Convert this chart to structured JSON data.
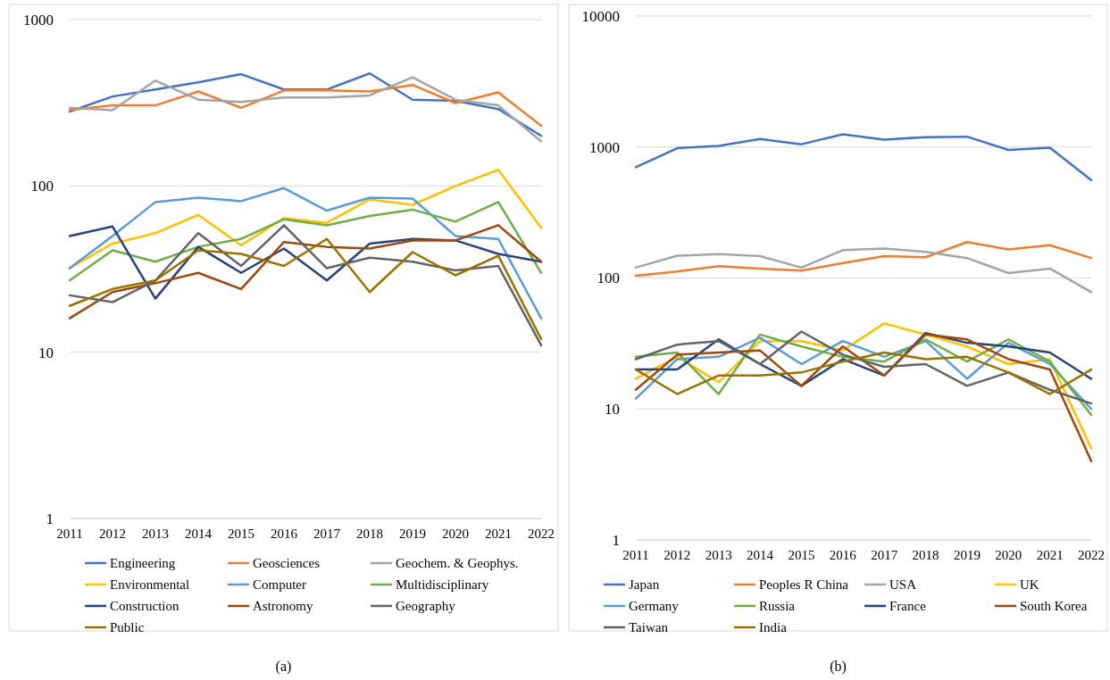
{
  "chart_data": [
    {
      "type": "line",
      "title": "(a)",
      "log": "y",
      "grid": "y",
      "legend": "bottom",
      "x": [
        2011,
        2012,
        2013,
        2014,
        2015,
        2016,
        2017,
        2018,
        2019,
        2020,
        2021,
        2022
      ],
      "xlim": [
        2011,
        2022
      ],
      "xticks": [
        2011,
        2012,
        2013,
        2014,
        2015,
        2016,
        2017,
        2018,
        2019,
        2020,
        2021,
        2022
      ],
      "ylim": [
        1,
        1000
      ],
      "yticks": [
        1,
        10,
        100,
        1000
      ],
      "series": [
        {
          "name": "Engineering",
          "color": "#4472c4",
          "values": [
            280,
            345,
            380,
            420,
            470,
            380,
            380,
            475,
            330,
            325,
            290,
            200
          ]
        },
        {
          "name": "Geosciences",
          "color": "#ed7d31",
          "values": [
            285,
            305,
            305,
            370,
            295,
            375,
            375,
            370,
            405,
            315,
            365,
            230
          ]
        },
        {
          "name": "Geochem. & Geophys.",
          "color": "#a5a5a5",
          "values": [
            295,
            285,
            430,
            330,
            320,
            340,
            340,
            350,
            450,
            330,
            305,
            185
          ]
        },
        {
          "name": "Environmental",
          "color": "#ffc000",
          "values": [
            32,
            45,
            52,
            67,
            44,
            64,
            60,
            83,
            77,
            100,
            125,
            56
          ]
        },
        {
          "name": "Computer",
          "color": "#5b9bd5",
          "values": [
            32,
            50,
            80,
            85,
            81,
            97,
            71,
            85,
            84,
            50,
            48,
            16
          ]
        },
        {
          "name": "Multidisciplinary",
          "color": "#70ad47",
          "values": [
            27,
            41,
            35,
            43,
            48,
            63,
            58,
            66,
            72,
            61,
            80,
            30
          ]
        },
        {
          "name": "Construction",
          "color": "#264478",
          "values": [
            50,
            57,
            21,
            43,
            30,
            42,
            27,
            45,
            48,
            47,
            39,
            35
          ]
        },
        {
          "name": "Astronomy",
          "color": "#9e480e",
          "values": [
            16,
            23,
            26,
            30,
            24,
            46,
            43,
            42,
            47,
            47,
            58,
            35
          ]
        },
        {
          "name": "Geography",
          "color": "#636363",
          "values": [
            22,
            20,
            27,
            52,
            33,
            58,
            32,
            37,
            35,
            31,
            33,
            11
          ]
        },
        {
          "name": "Public",
          "color": "#997300",
          "values": [
            19,
            24,
            27,
            41,
            39,
            33,
            48,
            23,
            40,
            29,
            38,
            12
          ]
        }
      ]
    },
    {
      "type": "line",
      "title": "(b)",
      "log": "y",
      "grid": "y",
      "legend": "bottom",
      "x": [
        2011,
        2012,
        2013,
        2014,
        2015,
        2016,
        2017,
        2018,
        2019,
        2020,
        2021,
        2022
      ],
      "xlim": [
        2011,
        2022
      ],
      "xticks": [
        2011,
        2012,
        2013,
        2014,
        2015,
        2016,
        2017,
        2018,
        2019,
        2020,
        2021,
        2022
      ],
      "ylim": [
        1,
        10000
      ],
      "yticks": [
        1,
        10,
        100,
        1000,
        10000
      ],
      "series": [
        {
          "name": "Japan",
          "color": "#4472c4",
          "values": [
            700,
            980,
            1020,
            1150,
            1050,
            1250,
            1140,
            1190,
            1200,
            950,
            990,
            560
          ]
        },
        {
          "name": "Peoples R China",
          "color": "#ed7d31",
          "values": [
            104,
            112,
            123,
            118,
            114,
            130,
            147,
            144,
            188,
            165,
            178,
            142
          ]
        },
        {
          "name": "USA",
          "color": "#a5a5a5",
          "values": [
            120,
            148,
            152,
            147,
            120,
            163,
            168,
            158,
            142,
            109,
            118,
            78
          ]
        },
        {
          "name": "UK",
          "color": "#ffc000",
          "values": [
            17,
            25,
            16,
            33,
            33,
            28,
            45,
            37,
            30,
            22,
            24,
            5
          ]
        },
        {
          "name": "Germany",
          "color": "#5b9bd5",
          "values": [
            12,
            24,
            25,
            35,
            22,
            33,
            25,
            33,
            17,
            32,
            22,
            10
          ]
        },
        {
          "name": "Russia",
          "color": "#70ad47",
          "values": [
            25,
            27,
            13,
            37,
            30,
            25,
            23,
            34,
            23,
            34,
            23,
            9
          ]
        },
        {
          "name": "France",
          "color": "#264478",
          "values": [
            20,
            20,
            34,
            22,
            15,
            24,
            18,
            38,
            32,
            30,
            27,
            17
          ]
        },
        {
          "name": "South Korea",
          "color": "#9e480e",
          "values": [
            14,
            26,
            27,
            28,
            15,
            30,
            18,
            37,
            34,
            24,
            20,
            4
          ]
        },
        {
          "name": "Taiwan",
          "color": "#636363",
          "values": [
            24,
            31,
            33,
            22,
            39,
            26,
            21,
            22,
            15,
            19,
            14,
            11
          ]
        },
        {
          "name": "India",
          "color": "#997300",
          "values": [
            20,
            13,
            18,
            18,
            19,
            23,
            27,
            24,
            25,
            19,
            13,
            20
          ]
        }
      ]
    }
  ]
}
